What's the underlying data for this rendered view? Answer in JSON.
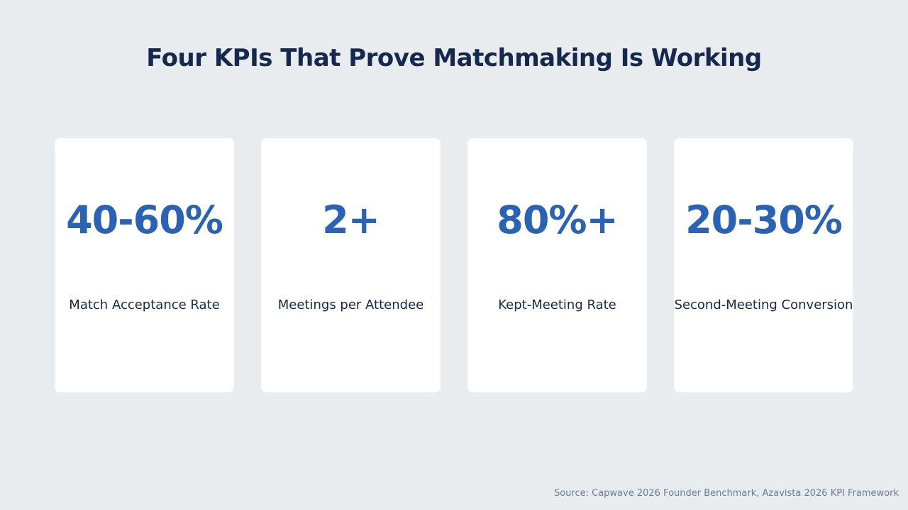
{
  "title": "Four KPIs That Prove Matchmaking Is Working",
  "kpis": [
    {
      "value": "40-60%",
      "label": "Match Acceptance Rate"
    },
    {
      "value": "2+",
      "label": "Meetings per Attendee"
    },
    {
      "value": "80%+",
      "label": "Kept-Meeting Rate"
    },
    {
      "value": "20-30%",
      "label": "Second-Meeting Conversion"
    }
  ],
  "source": "Source: Capwave 2026 Founder Benchmark, Azavista 2026 KPI Framework",
  "colors": {
    "background": "#e8ecef",
    "title": "#14294d",
    "value": "#2a62b5",
    "label": "#14294d",
    "source": "#6b7d96"
  }
}
